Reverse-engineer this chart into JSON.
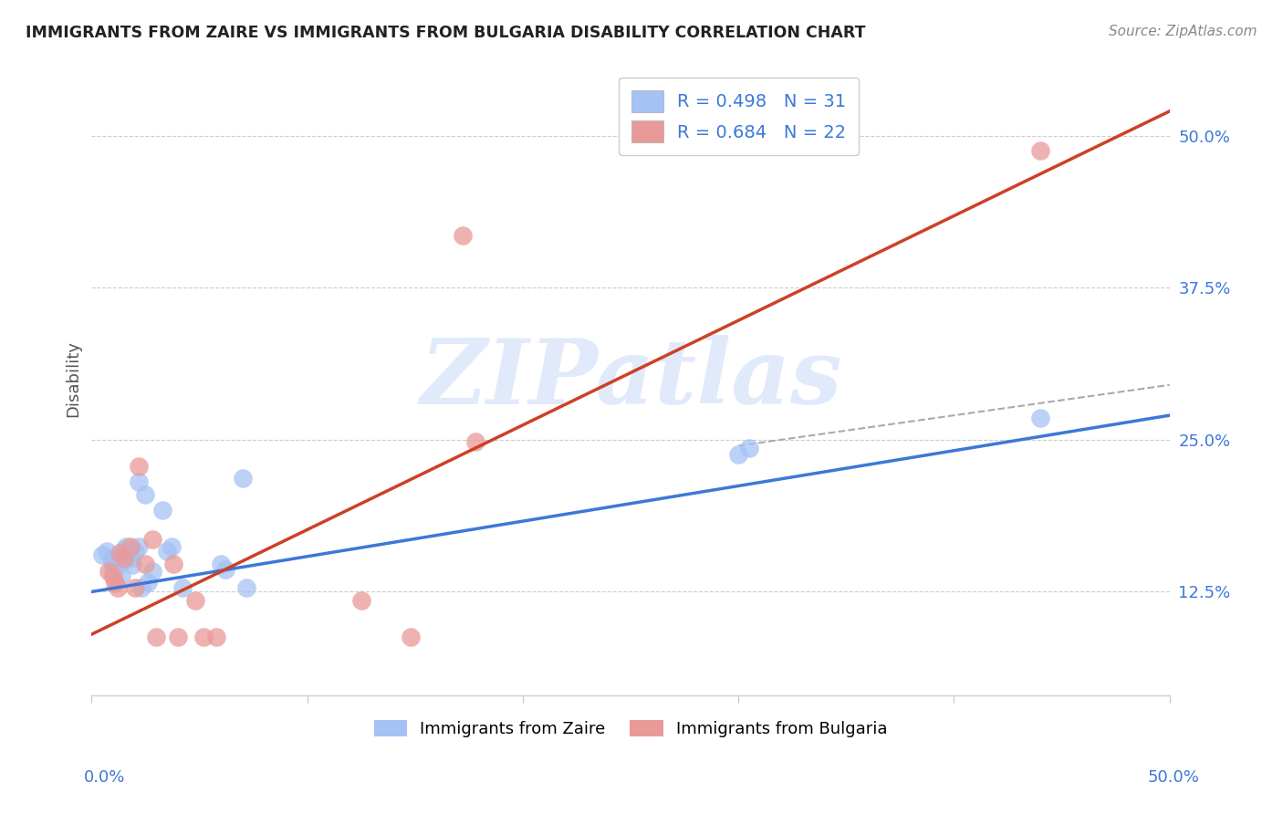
{
  "title": "IMMIGRANTS FROM ZAIRE VS IMMIGRANTS FROM BULGARIA DISABILITY CORRELATION CHART",
  "source": "Source: ZipAtlas.com",
  "ylabel": "Disability",
  "ytick_labels": [
    "12.5%",
    "25.0%",
    "37.5%",
    "50.0%"
  ],
  "ytick_values": [
    0.125,
    0.25,
    0.375,
    0.5
  ],
  "xrange": [
    0.0,
    0.5
  ],
  "yrange": [
    0.04,
    0.56
  ],
  "watermark_text": "ZIPatlas",
  "legend": {
    "zaire_R": 0.498,
    "zaire_N": 31,
    "bulgaria_R": 0.684,
    "bulgaria_N": 22
  },
  "zaire_color": "#a4c2f4",
  "bulgaria_color": "#ea9999",
  "zaire_line_color": "#3c78d8",
  "bulgaria_line_color": "#cc4125",
  "zaire_line": {
    "x0": 0.0,
    "y0": 0.125,
    "x1": 0.5,
    "y1": 0.27
  },
  "bulgaria_line": {
    "x0": 0.0,
    "y0": 0.09,
    "x1": 0.5,
    "y1": 0.52
  },
  "dashed_line": {
    "x0": 0.3,
    "y0": 0.245,
    "x1": 0.5,
    "y1": 0.295
  },
  "zaire_points": [
    [
      0.005,
      0.155
    ],
    [
      0.007,
      0.158
    ],
    [
      0.009,
      0.152
    ],
    [
      0.01,
      0.148
    ],
    [
      0.01,
      0.142
    ],
    [
      0.012,
      0.153
    ],
    [
      0.013,
      0.148
    ],
    [
      0.014,
      0.138
    ],
    [
      0.015,
      0.16
    ],
    [
      0.016,
      0.162
    ],
    [
      0.017,
      0.157
    ],
    [
      0.018,
      0.152
    ],
    [
      0.019,
      0.147
    ],
    [
      0.02,
      0.158
    ],
    [
      0.022,
      0.162
    ],
    [
      0.022,
      0.215
    ],
    [
      0.023,
      0.128
    ],
    [
      0.025,
      0.205
    ],
    [
      0.026,
      0.133
    ],
    [
      0.028,
      0.142
    ],
    [
      0.033,
      0.192
    ],
    [
      0.035,
      0.158
    ],
    [
      0.037,
      0.162
    ],
    [
      0.042,
      0.128
    ],
    [
      0.06,
      0.148
    ],
    [
      0.062,
      0.143
    ],
    [
      0.07,
      0.218
    ],
    [
      0.072,
      0.128
    ],
    [
      0.3,
      0.238
    ],
    [
      0.305,
      0.243
    ],
    [
      0.44,
      0.268
    ]
  ],
  "bulgaria_points": [
    [
      0.008,
      0.142
    ],
    [
      0.01,
      0.137
    ],
    [
      0.011,
      0.132
    ],
    [
      0.012,
      0.128
    ],
    [
      0.013,
      0.157
    ],
    [
      0.015,
      0.152
    ],
    [
      0.018,
      0.162
    ],
    [
      0.02,
      0.128
    ],
    [
      0.022,
      0.228
    ],
    [
      0.025,
      0.148
    ],
    [
      0.028,
      0.168
    ],
    [
      0.03,
      0.088
    ],
    [
      0.038,
      0.148
    ],
    [
      0.04,
      0.088
    ],
    [
      0.048,
      0.118
    ],
    [
      0.052,
      0.088
    ],
    [
      0.058,
      0.088
    ],
    [
      0.125,
      0.118
    ],
    [
      0.148,
      0.088
    ],
    [
      0.172,
      0.418
    ],
    [
      0.44,
      0.488
    ],
    [
      0.178,
      0.248
    ]
  ]
}
